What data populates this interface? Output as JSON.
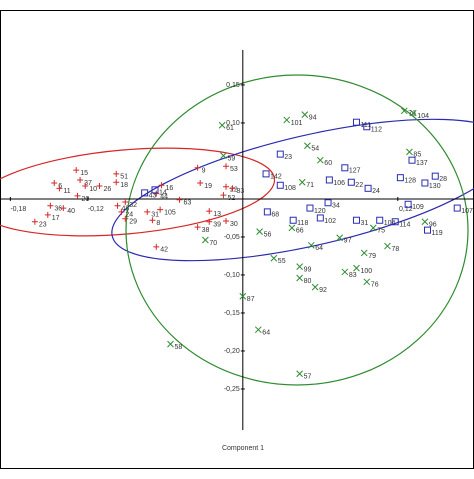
{
  "chart_data": {
    "type": "scatter",
    "x_label": "Component 1",
    "xlim": [
      -0.188,
      0.179
    ],
    "ylim": [
      -0.304,
      0.196
    ],
    "xticks": [
      {
        "value": -0.18,
        "label": "-0,18"
      },
      {
        "value": -0.12,
        "label": "-0,12"
      },
      {
        "value": 0.12,
        "label": "0,12"
      }
    ],
    "yticks": [
      {
        "value": 0.15,
        "label": "0,15"
      },
      {
        "value": 0.1,
        "label": "0,10"
      },
      {
        "value": -0.05,
        "label": "-0,05"
      },
      {
        "value": -0.1,
        "label": "-0,10"
      },
      {
        "value": -0.15,
        "label": "-0,15"
      },
      {
        "value": -0.2,
        "label": "-0,20"
      },
      {
        "value": -0.25,
        "label": "-0,25"
      }
    ],
    "series": [
      {
        "color": "#d62728",
        "marker": "plus",
        "labels": [
          "15",
          "37",
          "6",
          "11",
          "10",
          "26",
          "51",
          "18",
          "20",
          "36",
          "40",
          "17",
          "23",
          "9",
          "19",
          "53",
          "22",
          "83",
          "52",
          "16",
          "44",
          "63",
          "32",
          "48",
          "24",
          "29",
          "31",
          "105",
          "8",
          "13",
          "39",
          "38",
          "30",
          "42"
        ],
        "x": [
          -0.129,
          -0.126,
          -0.146,
          -0.142,
          -0.122,
          -0.111,
          -0.098,
          -0.098,
          -0.128,
          -0.149,
          -0.139,
          -0.151,
          -0.161,
          -0.035,
          -0.033,
          -0.013,
          -0.013,
          -0.008,
          -0.015,
          -0.063,
          -0.067,
          -0.049,
          -0.091,
          -0.097,
          -0.094,
          -0.091,
          -0.074,
          -0.064,
          -0.07,
          -0.026,
          -0.026,
          -0.035,
          -0.013,
          -0.067
        ],
        "y": [
          0.038,
          0.025,
          0.021,
          0.014,
          0.017,
          0.017,
          0.033,
          0.022,
          0.004,
          -0.009,
          -0.012,
          -0.021,
          -0.03,
          0.041,
          0.021,
          0.043,
          0.016,
          0.014,
          0.005,
          0.018,
          0.007,
          -0.001,
          -0.004,
          -0.009,
          -0.017,
          -0.026,
          -0.017,
          -0.014,
          -0.028,
          -0.016,
          -0.03,
          -0.037,
          -0.029,
          -0.063
        ]
      },
      {
        "color": "#2b2bb0",
        "marker": "square",
        "labels": [
          "111",
          "112",
          "23",
          "137",
          "127",
          "128",
          "28",
          "130",
          "142",
          "108",
          "106",
          "22",
          "24",
          "34",
          "120",
          "68",
          "118",
          "102",
          "31",
          "104",
          "109",
          "114",
          "107",
          "119",
          "43",
          "14"
        ],
        "x": [
          0.088,
          0.096,
          0.029,
          0.131,
          0.079,
          0.122,
          0.149,
          0.141,
          0.018,
          0.029,
          0.067,
          0.084,
          0.097,
          0.066,
          0.052,
          0.019,
          0.039,
          0.06,
          0.088,
          0.106,
          0.128,
          0.118,
          0.166,
          0.143,
          -0.076,
          -0.068
        ],
        "y": [
          0.101,
          0.095,
          0.059,
          0.051,
          0.041,
          0.028,
          0.03,
          0.021,
          0.033,
          0.018,
          0.025,
          0.022,
          0.014,
          -0.005,
          -0.012,
          -0.017,
          -0.028,
          -0.025,
          -0.028,
          -0.028,
          -0.007,
          -0.03,
          -0.012,
          -0.041,
          0.008,
          0.012
        ]
      },
      {
        "color": "#2e8b2e",
        "marker": "cross",
        "labels": [
          "101",
          "94",
          "61",
          "73",
          "104",
          "54",
          "60",
          "85",
          "71",
          "59",
          "97",
          "64",
          "78",
          "79",
          "55",
          "99",
          "80",
          "92",
          "83",
          "100",
          "76",
          "87",
          "64",
          "58",
          "57",
          "56",
          "66",
          "70",
          "96",
          "75"
        ],
        "x": [
          0.034,
          0.048,
          -0.016,
          0.125,
          0.132,
          0.05,
          0.06,
          0.129,
          0.046,
          -0.015,
          0.075,
          0.053,
          0.112,
          0.094,
          0.024,
          0.044,
          0.044,
          0.056,
          0.079,
          0.088,
          0.096,
          0.0,
          0.012,
          -0.056,
          0.044,
          0.013,
          0.038,
          -0.029,
          0.141,
          0.101
        ],
        "y": [
          0.104,
          0.111,
          0.097,
          0.116,
          0.113,
          0.07,
          0.051,
          0.062,
          0.022,
          0.057,
          -0.051,
          -0.061,
          -0.062,
          -0.071,
          -0.078,
          -0.089,
          -0.104,
          -0.116,
          -0.096,
          -0.091,
          -0.109,
          -0.128,
          -0.172,
          -0.191,
          -0.23,
          -0.043,
          -0.038,
          -0.054,
          -0.03,
          -0.038
        ]
      }
    ]
  }
}
